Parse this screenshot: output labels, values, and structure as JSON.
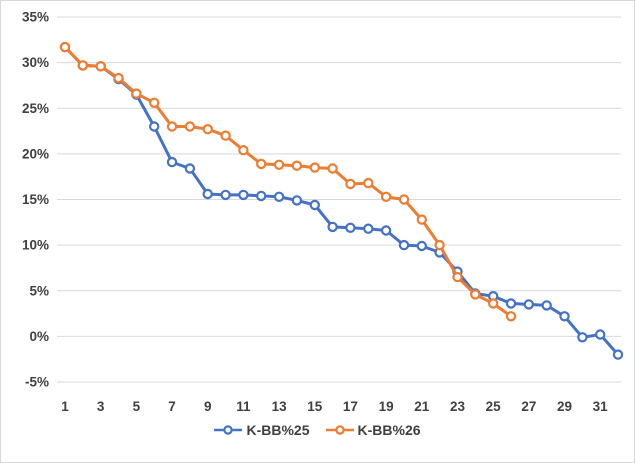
{
  "window": {
    "background": "#ffffff",
    "border_color": "#d9d9d9"
  },
  "colors": {
    "series_blue": "#4472C4",
    "series_orange": "#ED7D31",
    "gridline": "#d9d9d9",
    "axis_text": "#404040",
    "marker_fill": "#ffffff"
  },
  "chart_data": {
    "type": "line",
    "title": "",
    "xlabel": "",
    "ylabel": "",
    "grid": "horizontal",
    "legend_position": "bottom",
    "ylim": [
      -5,
      35
    ],
    "y_ticks": [
      35,
      30,
      25,
      20,
      15,
      10,
      5,
      0,
      -5
    ],
    "y_tick_labels": [
      "35%",
      "30%",
      "25%",
      "20%",
      "15%",
      "10%",
      "5%",
      "0%",
      "-5%"
    ],
    "x_ticks": [
      1,
      3,
      5,
      7,
      9,
      11,
      13,
      15,
      17,
      19,
      21,
      23,
      25,
      27,
      29,
      31
    ],
    "x_tick_labels": [
      "1",
      "3",
      "5",
      "7",
      "9",
      "11",
      "13",
      "15",
      "17",
      "19",
      "21",
      "23",
      "25",
      "27",
      "29",
      "31"
    ],
    "x": [
      1,
      2,
      3,
      4,
      5,
      6,
      7,
      8,
      9,
      10,
      11,
      12,
      13,
      14,
      15,
      16,
      17,
      18,
      19,
      20,
      21,
      22,
      23,
      24,
      25,
      26,
      27,
      28,
      29,
      30,
      31,
      32
    ],
    "series": [
      {
        "name": "K-BB%25",
        "color": "#4472C4",
        "values": [
          31.7,
          29.7,
          29.6,
          28.2,
          26.5,
          23.0,
          19.1,
          18.4,
          15.6,
          15.5,
          15.5,
          15.4,
          15.3,
          14.9,
          14.4,
          12.0,
          11.9,
          11.8,
          11.6,
          10.0,
          9.9,
          9.2,
          7.1,
          4.7,
          4.4,
          3.6,
          3.5,
          3.4,
          2.2,
          -0.1,
          0.2,
          -2.0
        ]
      },
      {
        "name": "K-BB%26",
        "color": "#ED7D31",
        "values": [
          31.7,
          29.7,
          29.6,
          28.3,
          26.6,
          25.6,
          23.0,
          23.0,
          22.7,
          22.0,
          20.4,
          18.9,
          18.8,
          18.7,
          18.5,
          18.4,
          16.7,
          16.8,
          15.3,
          15.0,
          12.8,
          10.0,
          6.5,
          4.6,
          3.6,
          2.2,
          null,
          null,
          null,
          null,
          null,
          null
        ]
      }
    ]
  }
}
